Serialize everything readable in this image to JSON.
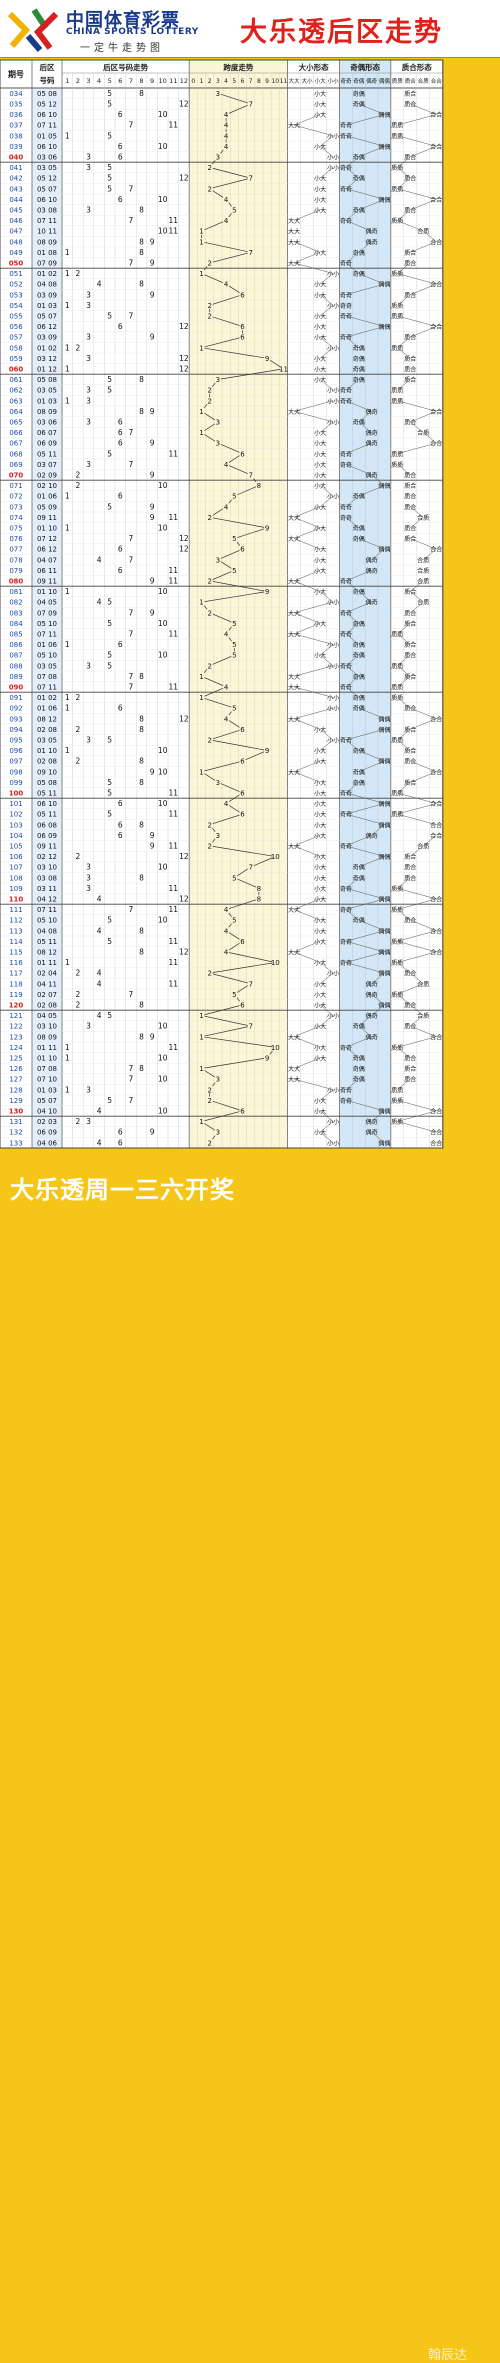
{
  "header": {
    "brand_cn": "中国体育彩票",
    "brand_en": "CHINA SPORTS LOTTERY",
    "brand_slogan": "一定牛走势图",
    "title": "大乐透后区走势"
  },
  "footer": {
    "text": "大乐透周一三六开奖",
    "watermark": "翰辰达"
  },
  "colors": {
    "accent": "#f5c518",
    "title_red": "#e0201a",
    "brand_blue": "#1a3a8a",
    "row_highlight": "#d62020",
    "blue_text": "#1a4aa8",
    "span_bg": "#fbf6d8",
    "oe_bg": "#d3e7f6"
  },
  "columns": {
    "issue": "期号",
    "rear_top": "后区",
    "rear_bottom": "号码",
    "trend": "后区号码走势",
    "span": "跨度走势",
    "bigsmall": "大小形态",
    "oddeven": "奇偶形态",
    "primecomp": "质合形态",
    "bs_sub": [
      "大大",
      "大小",
      "小大",
      "小小"
    ],
    "oe_sub": [
      "奇奇",
      "奇偶",
      "偶奇",
      "偶偶"
    ],
    "pc_sub": [
      "质质",
      "质合",
      "合质",
      "合合"
    ]
  },
  "chart_data": {
    "type": "table",
    "description_labels": {
      "big": "大",
      "small": "小",
      "odd": "奇",
      "even": "偶",
      "prime": "质",
      "composite": "合"
    },
    "highlight_issues": [
      "040",
      "050",
      "060",
      "070",
      "080",
      "090",
      "100",
      "110",
      "120",
      "130"
    ],
    "rows": [
      [
        "034",
        5,
        8
      ],
      [
        "035",
        5,
        12
      ],
      [
        "036",
        6,
        10
      ],
      [
        "037",
        7,
        11
      ],
      [
        "038",
        1,
        5
      ],
      [
        "039",
        6,
        10
      ],
      [
        "040",
        3,
        6
      ],
      [
        "041",
        3,
        5
      ],
      [
        "042",
        5,
        12
      ],
      [
        "043",
        5,
        7
      ],
      [
        "044",
        6,
        10
      ],
      [
        "045",
        3,
        8
      ],
      [
        "046",
        7,
        11
      ],
      [
        "047",
        10,
        11
      ],
      [
        "048",
        8,
        9
      ],
      [
        "049",
        1,
        8
      ],
      [
        "050",
        7,
        9
      ],
      [
        "051",
        1,
        2
      ],
      [
        "052",
        4,
        8
      ],
      [
        "053",
        3,
        9
      ],
      [
        "054",
        1,
        3
      ],
      [
        "055",
        5,
        7
      ],
      [
        "056",
        6,
        12
      ],
      [
        "057",
        3,
        9
      ],
      [
        "058",
        1,
        2
      ],
      [
        "059",
        3,
        12
      ],
      [
        "060",
        1,
        12
      ],
      [
        "061",
        5,
        8
      ],
      [
        "062",
        3,
        5
      ],
      [
        "063",
        1,
        3
      ],
      [
        "064",
        8,
        9
      ],
      [
        "065",
        3,
        6
      ],
      [
        "066",
        6,
        7
      ],
      [
        "067",
        6,
        9
      ],
      [
        "068",
        5,
        11
      ],
      [
        "069",
        3,
        7
      ],
      [
        "070",
        2,
        9
      ],
      [
        "071",
        2,
        10
      ],
      [
        "072",
        1,
        6
      ],
      [
        "073",
        5,
        9
      ],
      [
        "074",
        9,
        11
      ],
      [
        "075",
        1,
        10
      ],
      [
        "076",
        7,
        12
      ],
      [
        "077",
        6,
        12
      ],
      [
        "078",
        4,
        7
      ],
      [
        "079",
        6,
        11
      ],
      [
        "080",
        9,
        11
      ],
      [
        "081",
        1,
        10
      ],
      [
        "082",
        4,
        5
      ],
      [
        "083",
        7,
        9
      ],
      [
        "084",
        5,
        10
      ],
      [
        "085",
        7,
        11
      ],
      [
        "086",
        1,
        6
      ],
      [
        "087",
        5,
        10
      ],
      [
        "088",
        3,
        5
      ],
      [
        "089",
        7,
        8
      ],
      [
        "090",
        7,
        11
      ],
      [
        "091",
        1,
        2
      ],
      [
        "092",
        1,
        6
      ],
      [
        "093",
        8,
        12
      ],
      [
        "094",
        2,
        8
      ],
      [
        "095",
        3,
        5
      ],
      [
        "096",
        1,
        10
      ],
      [
        "097",
        2,
        8
      ],
      [
        "098",
        9,
        10
      ],
      [
        "099",
        5,
        8
      ],
      [
        "100",
        5,
        11
      ],
      [
        "101",
        6,
        10
      ],
      [
        "102",
        5,
        11
      ],
      [
        "103",
        6,
        8
      ],
      [
        "104",
        6,
        9
      ],
      [
        "105",
        9,
        11
      ],
      [
        "106",
        2,
        12
      ],
      [
        "107",
        3,
        10
      ],
      [
        "108",
        3,
        8
      ],
      [
        "109",
        3,
        11
      ],
      [
        "110",
        4,
        12
      ],
      [
        "111",
        7,
        11
      ],
      [
        "112",
        5,
        10
      ],
      [
        "113",
        4,
        8
      ],
      [
        "114",
        5,
        11
      ],
      [
        "115",
        8,
        12
      ],
      [
        "116",
        1,
        11
      ],
      [
        "117",
        2,
        4
      ],
      [
        "118",
        4,
        11
      ],
      [
        "119",
        2,
        7
      ],
      [
        "120",
        2,
        8
      ],
      [
        "121",
        4,
        5
      ],
      [
        "122",
        3,
        10
      ],
      [
        "123",
        8,
        9
      ],
      [
        "124",
        1,
        11
      ],
      [
        "125",
        1,
        10
      ],
      [
        "126",
        7,
        8
      ],
      [
        "127",
        7,
        10
      ],
      [
        "128",
        1,
        3
      ],
      [
        "129",
        5,
        7
      ],
      [
        "130",
        4,
        10
      ],
      [
        "131",
        2,
        3
      ],
      [
        "132",
        6,
        9
      ],
      [
        "133",
        4,
        6
      ]
    ]
  }
}
